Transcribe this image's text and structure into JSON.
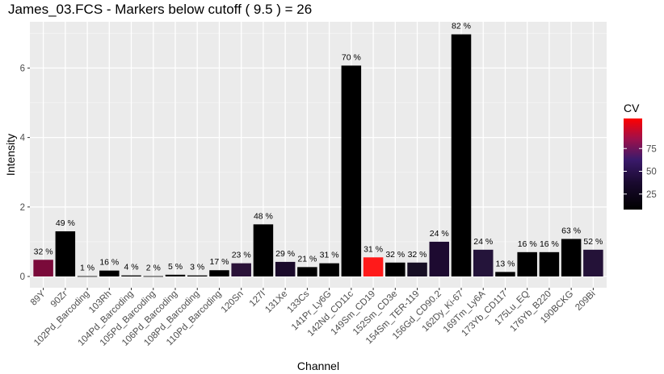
{
  "chart_data": {
    "type": "bar",
    "title": "James_03.FCS - Markers below cutoff ( 9.5 ) = 26",
    "xlabel": "Channel",
    "ylabel": "Intensity",
    "ylim": [
      0,
      7.2
    ],
    "yticks": [
      0,
      2,
      4,
      6
    ],
    "grid": true,
    "categories": [
      "89Y",
      "90Zr",
      "102Pd_Barcoding",
      "103Rh",
      "104Pd_Barcoding",
      "105Pd_Barcoding",
      "106Pd_Barcoding",
      "108Pd_Barcoding",
      "110Pd_Barcoding",
      "120Sn",
      "127I",
      "131Xe",
      "133Cs",
      "141Pr_Ly6G",
      "142Nd_CD11c",
      "149Sm_CD19",
      "152Sm_CD3e",
      "154Sm_TER-119",
      "156Gd_CD90.2",
      "162Dy_Ki-67",
      "169Tm_Ly6A",
      "173Yb_CD117",
      "175Lu_EQ",
      "176Yb_B220",
      "190BCKG",
      "209Bi"
    ],
    "values": [
      0.48,
      1.3,
      0.01,
      0.17,
      0.03,
      0.01,
      0.05,
      0.03,
      0.18,
      0.38,
      1.5,
      0.42,
      0.27,
      0.38,
      6.07,
      0.55,
      0.4,
      0.4,
      1.0,
      6.97,
      0.77,
      0.13,
      0.7,
      0.7,
      1.08,
      0.77
    ],
    "cv": [
      32,
      49,
      1,
      16,
      4,
      2,
      5,
      3,
      17,
      23,
      48,
      29,
      21,
      31,
      70,
      31,
      32,
      32,
      24,
      82,
      24,
      13,
      16,
      16,
      63,
      52
    ],
    "bar_labels": [
      "32 %",
      "49 %",
      "1 %",
      "16 %",
      "4 %",
      "2 %",
      "5 %",
      "3 %",
      "17 %",
      "23 %",
      "48 %",
      "29 %",
      "21 %",
      "31 %",
      "70 %",
      "31 %",
      "32 %",
      "32 %",
      "24 %",
      "82 %",
      "24 %",
      "13 %",
      "16 %",
      "16 %",
      "63 %",
      "52 %"
    ],
    "cv_colors": [
      "#7a0a3a",
      "#000000",
      "#000000",
      "#000000",
      "#000000",
      "#000000",
      "#000000",
      "#000000",
      "#000000",
      "#2a1238",
      "#000000",
      "#1a0a2a",
      "#000000",
      "#000000",
      "#000000",
      "#ff1a1a",
      "#000000",
      "#170f24",
      "#1d0a30",
      "#000000",
      "#24143a",
      "#000000",
      "#000000",
      "#000000",
      "#000000",
      "#241238"
    ],
    "legend": {
      "title": "CV",
      "ticks": [
        25,
        50,
        75
      ],
      "range": [
        0,
        100
      ],
      "colors": [
        "#000000",
        "#3b1a6b",
        "#ff0000"
      ],
      "position": "right"
    }
  },
  "colors": {
    "panel": "#ebebeb",
    "grid_major": "#ffffff",
    "grid_minor": "#f5f5f5"
  }
}
